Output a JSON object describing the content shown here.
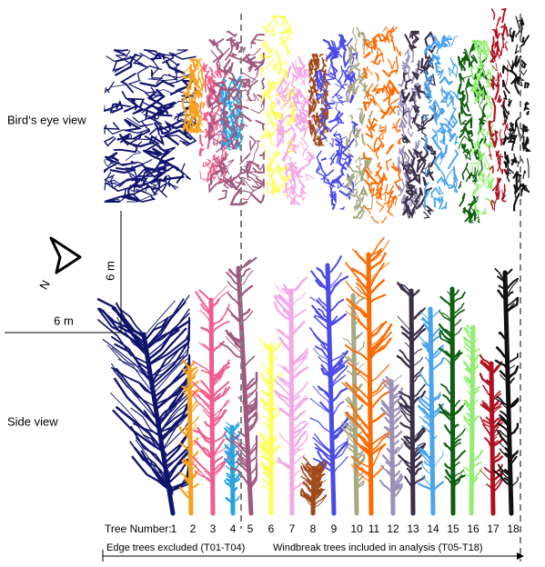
{
  "labels": {
    "birds_eye": "Bird‘s eye view",
    "side": "Side view",
    "scale_vertical": "6 m",
    "scale_horizontal": "6 m",
    "north": "N",
    "tree_number": "Tree Number:",
    "edge": "Edge trees excluded (T01-T04)",
    "windbreak": "Windbreak trees included in analysis (T05-T18)"
  },
  "trees": [
    {
      "number": "1",
      "color": "#10146e"
    },
    {
      "number": "2",
      "color": "#f5a21f"
    },
    {
      "number": "3",
      "color": "#ef5d8c"
    },
    {
      "number": "4",
      "color": "#29a3e0"
    },
    {
      "number": "5",
      "color": "#a0587f"
    },
    {
      "number": "6",
      "color": "#ffff55"
    },
    {
      "number": "7",
      "color": "#f4a8e8"
    },
    {
      "number": "8",
      "color": "#a04a1a"
    },
    {
      "number": "9",
      "color": "#4a4ae8"
    },
    {
      "number": "10",
      "color": "#a8a882"
    },
    {
      "number": "11",
      "color": "#ff6a00"
    },
    {
      "number": "12",
      "color": "#9a90b8"
    },
    {
      "number": "13",
      "color": "#3a2f48"
    },
    {
      "number": "14",
      "color": "#4aa3ee"
    },
    {
      "number": "15",
      "color": "#0f5f10"
    },
    {
      "number": "16",
      "color": "#90ee70"
    },
    {
      "number": "17",
      "color": "#b01020"
    },
    {
      "number": "18",
      "color": "#111111"
    }
  ]
}
